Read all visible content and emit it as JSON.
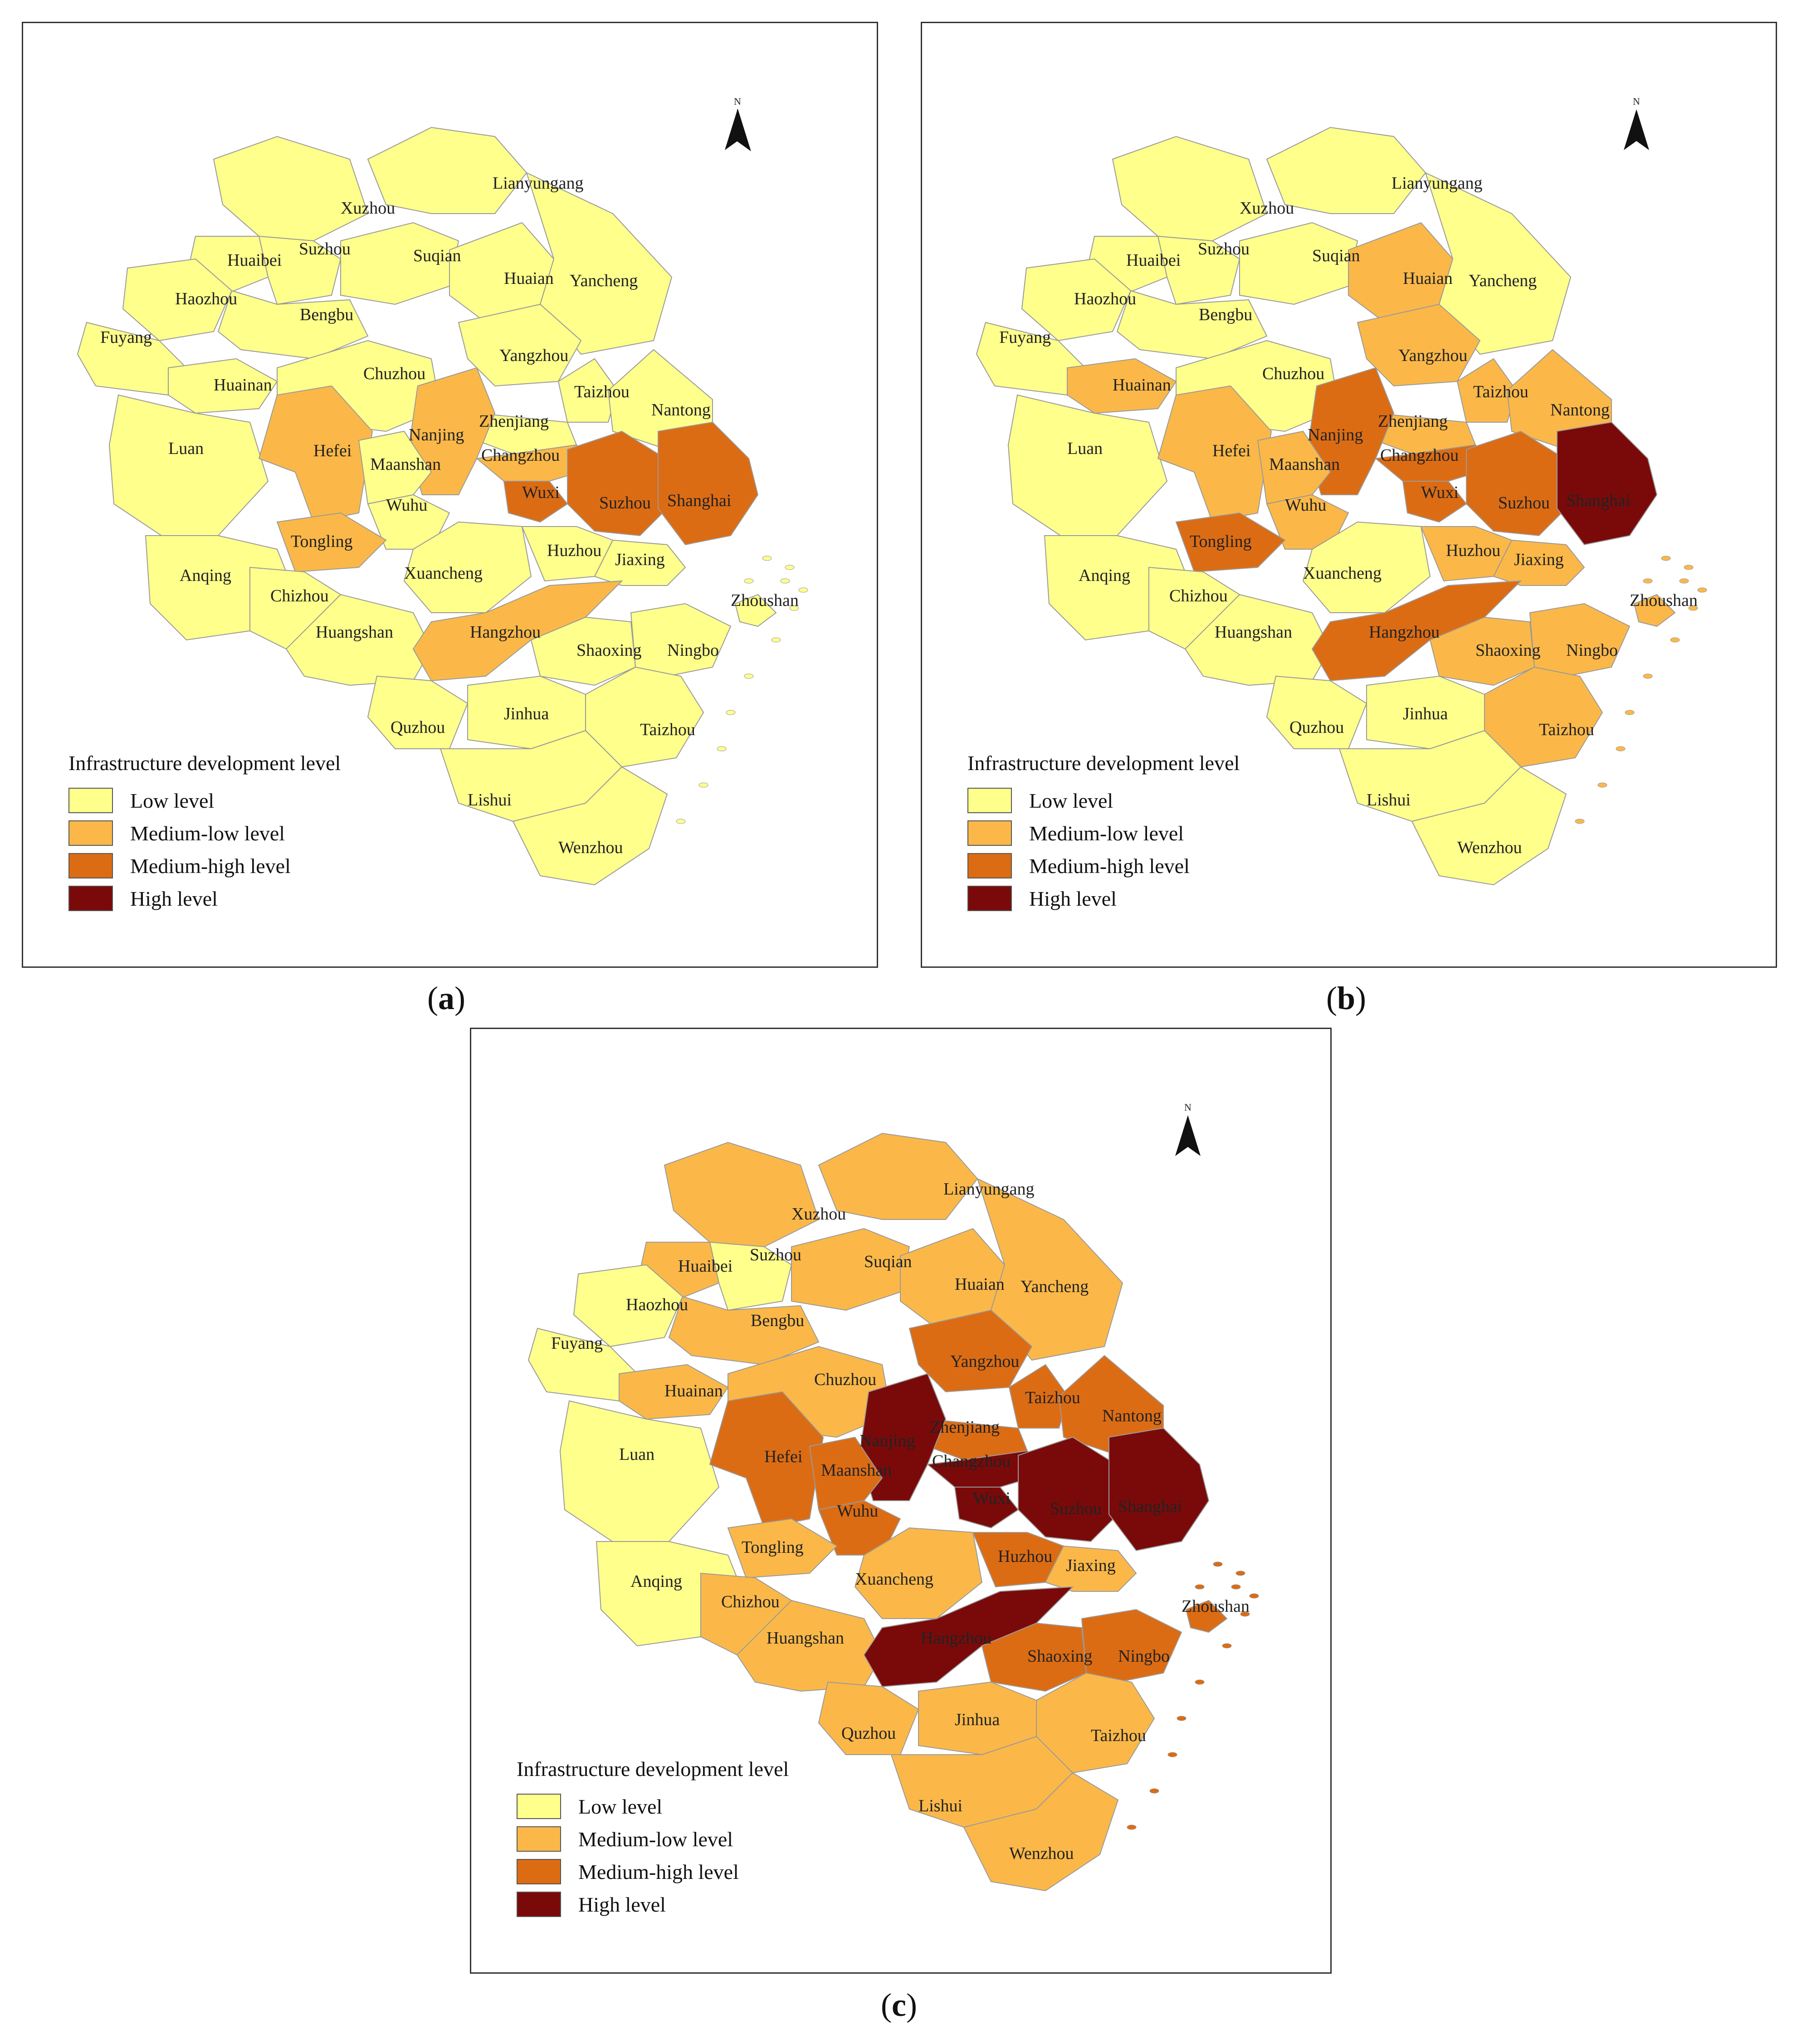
{
  "legend": {
    "title": "Infrastructure development level",
    "items": [
      {
        "key": "low",
        "label": "Low level",
        "color": "#FFFF8C"
      },
      {
        "key": "ml",
        "label": "Medium-low level",
        "color": "#FBB848"
      },
      {
        "key": "mh",
        "label": "Medium-high level",
        "color": "#DC6C14"
      },
      {
        "key": "high",
        "label": "High level",
        "color": "#7A0A0A"
      }
    ]
  },
  "north_label": "N",
  "panels": [
    {
      "id": "a",
      "caption": "a",
      "levels": {
        "Xuzhou": "low",
        "Lianyungang": "low",
        "Suzhou_n": "low",
        "Huaibei": "low",
        "Suqian": "low",
        "Huaian": "low",
        "Yancheng": "low",
        "Haozhou": "low",
        "Bengbu": "low",
        "Fuyang": "low",
        "Yangzhou": "low",
        "Huainan": "low",
        "Chuzhou": "low",
        "Taizhou_j": "low",
        "Nantong": "low",
        "Zhenjiang": "low",
        "Nanjing": "ml",
        "Luan": "low",
        "Hefei": "ml",
        "Changzhou": "ml",
        "Maanshan": "low",
        "Wuxi": "mh",
        "Suzhou": "mh",
        "Shanghai": "mh",
        "Wuhu": "low",
        "Tongling": "ml",
        "Anqing": "low",
        "Xuancheng": "low",
        "Huzhou": "low",
        "Jiaxing": "low",
        "Chizhou": "low",
        "Huangshan": "low",
        "Hangzhou": "ml",
        "Shaoxing": "low",
        "Ningbo": "low",
        "Zhoushan": "low",
        "Quzhou": "low",
        "Jinhua": "low",
        "Taizhou_z": "low",
        "Lishui": "low",
        "Wenzhou": "low"
      }
    },
    {
      "id": "b",
      "caption": "b",
      "levels": {
        "Xuzhou": "low",
        "Lianyungang": "low",
        "Suzhou_n": "low",
        "Huaibei": "low",
        "Suqian": "low",
        "Huaian": "ml",
        "Yancheng": "low",
        "Haozhou": "low",
        "Bengbu": "low",
        "Fuyang": "low",
        "Yangzhou": "ml",
        "Huainan": "ml",
        "Chuzhou": "low",
        "Taizhou_j": "ml",
        "Nantong": "ml",
        "Zhenjiang": "ml",
        "Nanjing": "mh",
        "Luan": "low",
        "Hefei": "ml",
        "Changzhou": "mh",
        "Maanshan": "ml",
        "Wuxi": "mh",
        "Suzhou": "mh",
        "Shanghai": "high",
        "Wuhu": "ml",
        "Tongling": "mh",
        "Anqing": "low",
        "Xuancheng": "low",
        "Huzhou": "ml",
        "Jiaxing": "ml",
        "Chizhou": "low",
        "Huangshan": "low",
        "Hangzhou": "mh",
        "Shaoxing": "ml",
        "Ningbo": "ml",
        "Zhoushan": "ml",
        "Quzhou": "low",
        "Jinhua": "low",
        "Taizhou_z": "ml",
        "Lishui": "low",
        "Wenzhou": "low"
      }
    },
    {
      "id": "c",
      "caption": "c",
      "levels": {
        "Xuzhou": "ml",
        "Lianyungang": "ml",
        "Suzhou_n": "low",
        "Huaibei": "ml",
        "Suqian": "ml",
        "Huaian": "ml",
        "Yancheng": "ml",
        "Haozhou": "low",
        "Bengbu": "ml",
        "Fuyang": "low",
        "Yangzhou": "mh",
        "Huainan": "ml",
        "Chuzhou": "ml",
        "Taizhou_j": "mh",
        "Nantong": "mh",
        "Zhenjiang": "mh",
        "Nanjing": "high",
        "Luan": "low",
        "Hefei": "mh",
        "Changzhou": "high",
        "Maanshan": "mh",
        "Wuxi": "high",
        "Suzhou": "high",
        "Shanghai": "high",
        "Wuhu": "mh",
        "Tongling": "ml",
        "Anqing": "low",
        "Xuancheng": "ml",
        "Huzhou": "mh",
        "Jiaxing": "ml",
        "Chizhou": "ml",
        "Huangshan": "ml",
        "Hangzhou": "high",
        "Shaoxing": "mh",
        "Ningbo": "mh",
        "Zhoushan": "mh",
        "Quzhou": "ml",
        "Jinhua": "ml",
        "Taizhou_z": "ml",
        "Lishui": "ml",
        "Wenzhou": "ml"
      }
    }
  ],
  "cities": [
    {
      "id": "Xuzhou",
      "label": "Xuzhou"
    },
    {
      "id": "Lianyungang",
      "label": "Lianyungang"
    },
    {
      "id": "Suzhou_n",
      "label": "Suzhou"
    },
    {
      "id": "Huaibei",
      "label": "Huaibei"
    },
    {
      "id": "Suqian",
      "label": "Suqian"
    },
    {
      "id": "Huaian",
      "label": "Huaian"
    },
    {
      "id": "Yancheng",
      "label": "Yancheng"
    },
    {
      "id": "Haozhou",
      "label": "Haozhou"
    },
    {
      "id": "Bengbu",
      "label": "Bengbu"
    },
    {
      "id": "Fuyang",
      "label": "Fuyang"
    },
    {
      "id": "Yangzhou",
      "label": "Yangzhou"
    },
    {
      "id": "Huainan",
      "label": "Huainan"
    },
    {
      "id": "Chuzhou",
      "label": "Chuzhou"
    },
    {
      "id": "Taizhou_j",
      "label": "Taizhou"
    },
    {
      "id": "Nantong",
      "label": "Nantong"
    },
    {
      "id": "Zhenjiang",
      "label": "Zhenjiang"
    },
    {
      "id": "Nanjing",
      "label": "Nanjing"
    },
    {
      "id": "Luan",
      "label": "Luan"
    },
    {
      "id": "Hefei",
      "label": "Hefei"
    },
    {
      "id": "Changzhou",
      "label": "Changzhou"
    },
    {
      "id": "Maanshan",
      "label": "Maanshan"
    },
    {
      "id": "Wuxi",
      "label": "Wuxi"
    },
    {
      "id": "Suzhou",
      "label": "Suzhou"
    },
    {
      "id": "Shanghai",
      "label": "Shanghai"
    },
    {
      "id": "Wuhu",
      "label": "Wuhu"
    },
    {
      "id": "Tongling",
      "label": "Tongling"
    },
    {
      "id": "Anqing",
      "label": "Anqing"
    },
    {
      "id": "Xuancheng",
      "label": "Xuancheng"
    },
    {
      "id": "Huzhou",
      "label": "Huzhou"
    },
    {
      "id": "Jiaxing",
      "label": "Jiaxing"
    },
    {
      "id": "Chizhou",
      "label": "Chizhou"
    },
    {
      "id": "Huangshan",
      "label": "Huangshan"
    },
    {
      "id": "Hangzhou",
      "label": "Hangzhou"
    },
    {
      "id": "Shaoxing",
      "label": "Shaoxing"
    },
    {
      "id": "Ningbo",
      "label": "Ningbo"
    },
    {
      "id": "Zhoushan",
      "label": "Zhoushan"
    },
    {
      "id": "Quzhou",
      "label": "Quzhou"
    },
    {
      "id": "Jinhua",
      "label": "Jinhua"
    },
    {
      "id": "Taizhou_z",
      "label": "Taizhou"
    },
    {
      "id": "Lishui",
      "label": "Lishui"
    },
    {
      "id": "Wenzhou",
      "label": "Wenzhou"
    }
  ]
}
